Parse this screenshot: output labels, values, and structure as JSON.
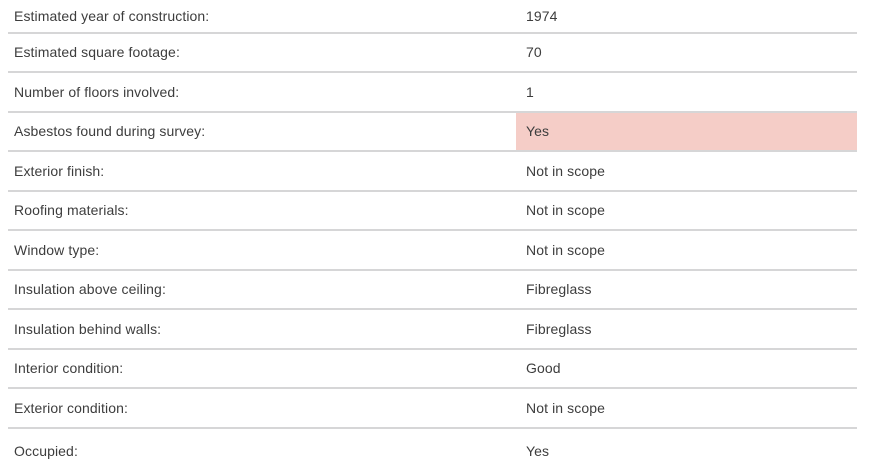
{
  "table": {
    "name": "property-survey-summary",
    "rows": [
      {
        "label": "Estimated year of construction:",
        "value": "1974",
        "highlight": false
      },
      {
        "label": "Estimated square footage:",
        "value": "70",
        "highlight": false
      },
      {
        "label": "Number of floors involved:",
        "value": "1",
        "highlight": false
      },
      {
        "label": "Asbestos found during survey:",
        "value": "Yes",
        "highlight": true
      },
      {
        "label": "Exterior finish:",
        "value": "Not in scope",
        "highlight": false
      },
      {
        "label": "Roofing materials:",
        "value": "Not in scope",
        "highlight": false
      },
      {
        "label": "Window type:",
        "value": "Not in scope",
        "highlight": false
      },
      {
        "label": "Insulation above ceiling:",
        "value": "Fibreglass",
        "highlight": false
      },
      {
        "label": "Insulation behind walls:",
        "value": "Fibreglass",
        "highlight": false
      },
      {
        "label": "Interior condition:",
        "value": "Good",
        "highlight": false
      },
      {
        "label": "Exterior condition:",
        "value": "Not in scope",
        "highlight": false
      },
      {
        "label": "Occupied:",
        "value": "Yes",
        "highlight": false
      }
    ]
  },
  "colors": {
    "highlight_background": "#f5cdc7",
    "divider": "#d6d6d7",
    "text": "#3d3d3d"
  }
}
